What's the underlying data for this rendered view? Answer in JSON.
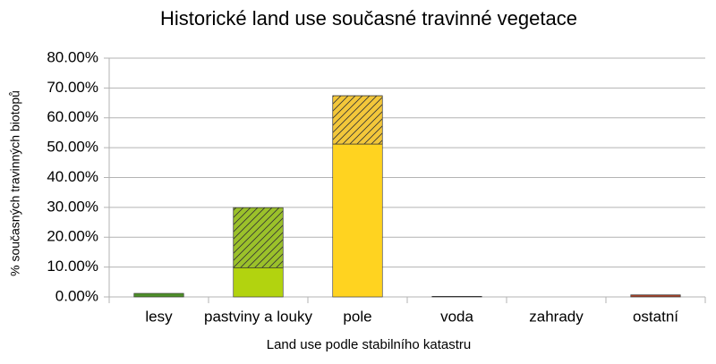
{
  "chart_data": {
    "type": "stacked-bar",
    "title": "Historické land use současné travinné vegetace",
    "x_label": "Land use podle stabilního katastru",
    "y_label": "% současných travinných biotopů",
    "categories": [
      "lesy",
      "pastviny a louky",
      "pole",
      "voda",
      "zahrady",
      "ostatní"
    ],
    "series": [
      {
        "colors": [
          "#4e8f2a",
          "#b2d30f",
          "#ffd320",
          "#1f1f1f",
          "#7e9b3a",
          "#a0412a"
        ],
        "values": [
          1.2,
          9.8,
          51.2,
          0.2,
          0,
          0.7
        ]
      },
      {
        "colors": [
          "#4e8f2a",
          "#9bc12a",
          "#f3c73a",
          "#1f1f1f",
          "#7e9b3a",
          "#a0412a"
        ],
        "pattern": "hatch",
        "values": [
          0,
          20.1,
          16.2,
          0,
          0,
          0
        ]
      }
    ],
    "ylim": [
      0,
      80
    ],
    "yticks": [
      {
        "value": 0,
        "label": "0.00%"
      },
      {
        "value": 10,
        "label": "10.00%"
      },
      {
        "value": 20,
        "label": "20.00%"
      },
      {
        "value": 30,
        "label": "30.00%"
      },
      {
        "value": 40,
        "label": "40.00%"
      },
      {
        "value": 50,
        "label": "50.00%"
      },
      {
        "value": 60,
        "label": "60.00%"
      },
      {
        "value": 70,
        "label": "70.00%"
      },
      {
        "value": 80,
        "label": "80.00%"
      }
    ],
    "grid": true
  }
}
